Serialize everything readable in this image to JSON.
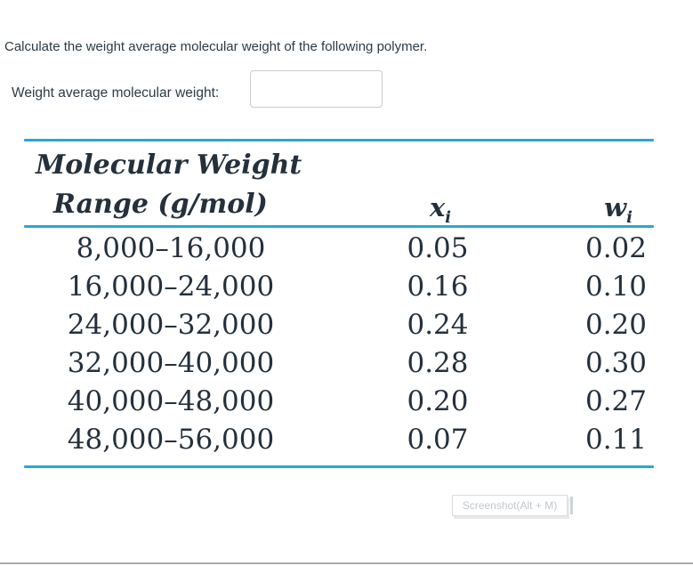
{
  "question": {
    "text": "Calculate the weight average molecular weight of the following polymer."
  },
  "answer": {
    "label": "Weight average molecular weight:",
    "value": "",
    "placeholder": ""
  },
  "table": {
    "accent_color": "#2aa7d6",
    "text_color": "#25303d",
    "header": {
      "col1_line1": "Molecular Weight",
      "col1_line2": "Range (g/mol)",
      "col2_base": "x",
      "col2_sub": "i",
      "col3_base": "w",
      "col3_sub": "i"
    },
    "rows": [
      {
        "range": "8,000–16,000",
        "xi": "0.05",
        "wi": "0.02"
      },
      {
        "range": "16,000–24,000",
        "xi": "0.16",
        "wi": "0.10"
      },
      {
        "range": "24,000–32,000",
        "xi": "0.24",
        "wi": "0.20"
      },
      {
        "range": "32,000–40,000",
        "xi": "0.28",
        "wi": "0.30"
      },
      {
        "range": "40,000–48,000",
        "xi": "0.20",
        "wi": "0.27"
      },
      {
        "range": "48,000–56,000",
        "xi": "0.07",
        "wi": "0.11"
      }
    ]
  },
  "tooltip": {
    "label": "Screenshot(Alt + M)"
  }
}
